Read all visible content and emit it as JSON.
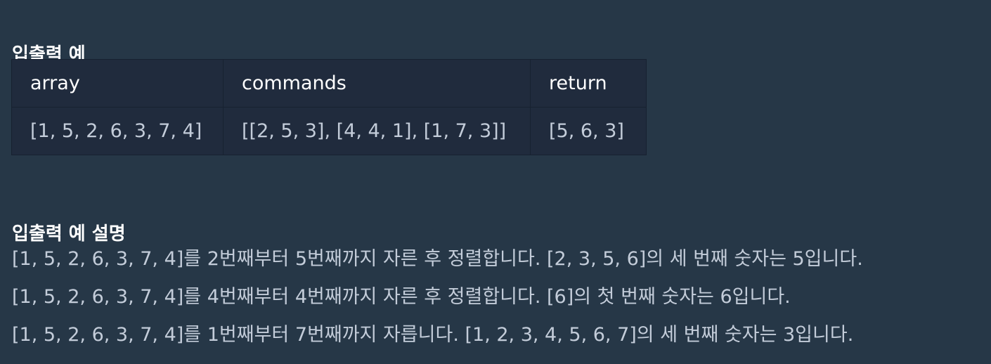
{
  "examples": {
    "title": "입출력 예",
    "headers": [
      "array",
      "commands",
      "return"
    ],
    "rows": [
      [
        "[1, 5, 2, 6, 3, 7, 4]",
        "[[2, 5, 3], [4, 4, 1], [1, 7, 3]]",
        "[5, 6, 3]"
      ]
    ]
  },
  "explanation": {
    "title": "입출력 예 설명",
    "lines": [
      "[1, 5, 2, 6, 3, 7, 4]를 2번째부터 5번째까지 자른 후 정렬합니다. [2, 3, 5, 6]의 세 번째 숫자는 5입니다.",
      "[1, 5, 2, 6, 3, 7, 4]를 4번째부터 4번째까지 자른 후 정렬합니다. [6]의 첫 번째 숫자는 6입니다.",
      "[1, 5, 2, 6, 3, 7, 4]를 1번째부터 7번째까지 자릅니다. [1, 2, 3, 4, 5, 6, 7]의 세 번째 숫자는 3입니다."
    ]
  }
}
